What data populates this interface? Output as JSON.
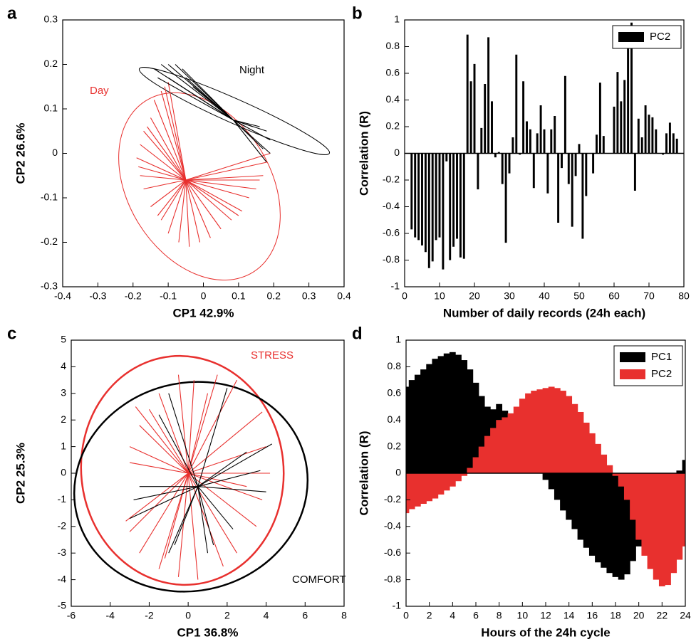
{
  "chart_data": [
    {
      "type": "biplot",
      "panel_label": "a",
      "x_label": "CP1 42.9%",
      "y_label": "CP2 26.6%",
      "xlim": [
        -0.4,
        0.4
      ],
      "ylim": [
        -0.3,
        0.3
      ],
      "xticks": [
        -0.4,
        -0.3,
        -0.2,
        -0.1,
        0,
        0.1,
        0.2,
        0.3,
        0.4
      ],
      "yticks": [
        -0.3,
        -0.2,
        -0.1,
        0,
        0.1,
        0.2,
        0.3
      ],
      "series": [
        {
          "name": "Day",
          "color": "#e8302e",
          "origin": [
            -0.05,
            -0.06
          ],
          "x": [
            -0.1,
            -0.11,
            -0.12,
            -0.14,
            -0.15,
            -0.16,
            -0.17,
            -0.18,
            -0.19,
            -0.185,
            -0.18,
            -0.17,
            -0.15,
            -0.13,
            -0.12,
            -0.1,
            -0.07,
            -0.04,
            -0.01,
            0.02,
            0.05,
            0.08,
            0.1,
            0.11,
            0.13,
            0.15,
            0.16,
            0.17,
            0.18,
            0.19
          ],
          "y": [
            0.16,
            0.15,
            0.14,
            0.12,
            0.08,
            0.06,
            0.05,
            0.02,
            -0.01,
            -0.03,
            -0.05,
            -0.08,
            -0.12,
            -0.14,
            -0.15,
            -0.18,
            -0.2,
            -0.21,
            -0.2,
            -0.19,
            -0.17,
            -0.15,
            -0.14,
            -0.13,
            -0.1,
            -0.08,
            -0.06,
            -0.05,
            -0.02,
            0.0
          ]
        },
        {
          "name": "Night",
          "color": "#000000",
          "origin": [
            0.085,
            0.075
          ],
          "x": [
            -0.14,
            -0.13,
            -0.12,
            -0.1,
            -0.1,
            -0.08,
            -0.06,
            -0.05,
            -0.03,
            0.19,
            0.19,
            0.18,
            0.18,
            0.17,
            0.16,
            0.14,
            0.12
          ],
          "y": [
            0.19,
            0.17,
            0.2,
            0.2,
            0.17,
            0.2,
            0.19,
            0.17,
            0.15,
            0.0,
            0.03,
            0.05,
            -0.02,
            0.01,
            0.06,
            0.06,
            0.06
          ]
        }
      ]
    },
    {
      "type": "bar",
      "panel_label": "b",
      "x_label": "Number of daily records (24h each)",
      "y_label": "Correlation (R)",
      "xlim": [
        0,
        80
      ],
      "ylim": [
        -1,
        1
      ],
      "xticks": [
        0,
        10,
        20,
        30,
        40,
        50,
        60,
        70,
        80
      ],
      "yticks": [
        -1,
        -0.8,
        -0.6,
        -0.4,
        -0.2,
        0,
        0.2,
        0.4,
        0.6,
        0.8,
        1
      ],
      "legend": "upper right",
      "x": [
        2,
        3,
        4,
        5,
        6,
        7,
        8,
        9,
        10,
        11,
        12,
        13,
        14,
        15,
        16,
        17,
        18,
        19,
        20,
        21,
        22,
        23,
        24,
        25,
        26,
        27,
        28,
        29,
        30,
        31,
        32,
        33,
        34,
        35,
        36,
        37,
        38,
        39,
        40,
        41,
        42,
        43,
        44,
        45,
        46,
        47,
        48,
        49,
        50,
        51,
        52,
        53,
        54,
        55,
        56,
        57,
        58,
        59,
        60,
        61,
        62,
        63,
        64,
        65,
        66,
        67,
        68,
        69,
        70,
        71,
        72,
        73,
        74,
        75,
        76,
        77,
        78
      ],
      "series": [
        {
          "name": "PC2",
          "color": "#000000",
          "values": [
            -0.57,
            -0.63,
            -0.65,
            -0.69,
            -0.74,
            -0.86,
            -0.81,
            -0.65,
            -0.63,
            -0.87,
            -0.06,
            -0.8,
            -0.7,
            -0.64,
            -0.78,
            -0.79,
            0.89,
            0.54,
            0.67,
            -0.27,
            0.19,
            0.52,
            0.87,
            0.39,
            -0.03,
            0.01,
            -0.23,
            -0.67,
            -0.15,
            0.12,
            0.74,
            -0.01,
            0.54,
            0.24,
            0.18,
            -0.26,
            0.15,
            0.36,
            0.18,
            -0.3,
            0.18,
            0.28,
            -0.52,
            -0.11,
            0.58,
            -0.23,
            -0.55,
            -0.17,
            0.07,
            -0.64,
            -0.32,
            0,
            -0.15,
            0.14,
            0.53,
            0.13,
            0,
            0,
            0.35,
            0.61,
            0.39,
            0.55,
            0.82,
            0.98,
            -0.28,
            0.26,
            0.12,
            0.36,
            0.29,
            0.27,
            0.18,
            0,
            -0.01,
            0.15,
            0.23,
            0.15,
            0.11
          ]
        }
      ]
    },
    {
      "type": "biplot",
      "panel_label": "c",
      "x_label": "CP1 36.8%",
      "y_label": "CP2 25.3%",
      "xlim": [
        -6,
        8
      ],
      "ylim": [
        -5,
        5
      ],
      "xticks": [
        -6,
        -4,
        -2,
        0,
        2,
        4,
        6,
        8
      ],
      "yticks": [
        -5,
        -4,
        -3,
        -2,
        -1,
        0,
        1,
        2,
        3,
        4,
        5
      ],
      "series": [
        {
          "name": "STRESS",
          "color": "#e8302e",
          "origin": [
            0,
            0
          ],
          "x": [
            -3.2,
            -3,
            -3,
            -2.7,
            -2.5,
            -2,
            -1.5,
            -0.5,
            0.3,
            1,
            1.5,
            2.5,
            3.8,
            4,
            4.2,
            3,
            3.8,
            3.5,
            2.5,
            1.8,
            0.5,
            -0.5,
            -1.2,
            -1.5,
            -2.5,
            -3
          ],
          "y": [
            -1.8,
            0.4,
            1,
            2.5,
            1.8,
            2.4,
            3,
            3.7,
            3.5,
            3,
            3.7,
            3.5,
            2.3,
            1,
            0,
            -0.5,
            -1,
            -2,
            -3,
            -3.5,
            -4,
            -3.9,
            -3.2,
            -3.6,
            -3,
            -2.2
          ]
        },
        {
          "name": "COMFORT",
          "color": "#000000",
          "origin": [
            0.5,
            -0.5
          ],
          "x": [
            -3,
            -2.8,
            -2.5,
            -1.5,
            -1,
            2,
            4.3,
            3,
            3.7,
            4,
            2.3,
            1.3,
            1,
            -0.7,
            -1
          ],
          "y": [
            -1.7,
            -1,
            -0.5,
            2.2,
            3,
            3.2,
            1.1,
            0.8,
            0.1,
            -0.7,
            -2.1,
            -2.7,
            -3,
            -2.7,
            -3
          ]
        }
      ]
    },
    {
      "type": "bar",
      "panel_label": "d",
      "x_label": "Hours of the 24h cycle",
      "y_label": "Correlation (R)",
      "xlim": [
        0,
        24
      ],
      "ylim": [
        -1,
        1
      ],
      "xticks": [
        0,
        2,
        4,
        6,
        8,
        10,
        12,
        14,
        16,
        18,
        20,
        22,
        24
      ],
      "yticks": [
        -1,
        -0.8,
        -0.6,
        -0.4,
        -0.2,
        0,
        0.2,
        0.4,
        0.6,
        0.8,
        1
      ],
      "legend": "upper right",
      "x": [
        0,
        0.5,
        1,
        1.5,
        2,
        2.5,
        3,
        3.5,
        4,
        4.5,
        5,
        5.5,
        6,
        6.5,
        7,
        7.5,
        8,
        8.5,
        9,
        9.5,
        10,
        10.5,
        11,
        11.5,
        12,
        12.5,
        13,
        13.5,
        14,
        14.5,
        15,
        15.5,
        16,
        16.5,
        17,
        17.5,
        18,
        18.5,
        19,
        19.5,
        20,
        20.5,
        21,
        21.5,
        22,
        22.5,
        23,
        23.5,
        24
      ],
      "series": [
        {
          "name": "PC1",
          "color": "#000000",
          "values": [
            0.65,
            0.7,
            0.74,
            0.78,
            0.82,
            0.86,
            0.88,
            0.9,
            0.91,
            0.89,
            0.85,
            0.78,
            0.68,
            0.58,
            0.5,
            0.48,
            0.52,
            0.47,
            0.4,
            0.32,
            0.24,
            0.16,
            0.09,
            0.02,
            -0.05,
            -0.12,
            -0.2,
            -0.28,
            -0.35,
            -0.42,
            -0.5,
            -0.56,
            -0.62,
            -0.67,
            -0.71,
            -0.75,
            -0.78,
            -0.8,
            -0.76,
            -0.66,
            -0.55,
            -0.45,
            -0.35,
            -0.27,
            -0.2,
            -0.12,
            -0.05,
            0.02,
            0.1
          ]
        },
        {
          "name": "PC2",
          "color": "#e8302e",
          "values": [
            -0.3,
            -0.27,
            -0.25,
            -0.23,
            -0.21,
            -0.19,
            -0.16,
            -0.13,
            -0.1,
            -0.06,
            -0.02,
            0.04,
            0.12,
            0.2,
            0.28,
            0.34,
            0.4,
            0.42,
            0.45,
            0.5,
            0.56,
            0.6,
            0.62,
            0.63,
            0.64,
            0.65,
            0.64,
            0.62,
            0.58,
            0.52,
            0.46,
            0.38,
            0.3,
            0.22,
            0.14,
            0.06,
            -0.02,
            -0.1,
            -0.2,
            -0.35,
            -0.5,
            -0.62,
            -0.72,
            -0.8,
            -0.85,
            -0.84,
            -0.75,
            -0.65,
            -0.55
          ]
        }
      ]
    }
  ]
}
